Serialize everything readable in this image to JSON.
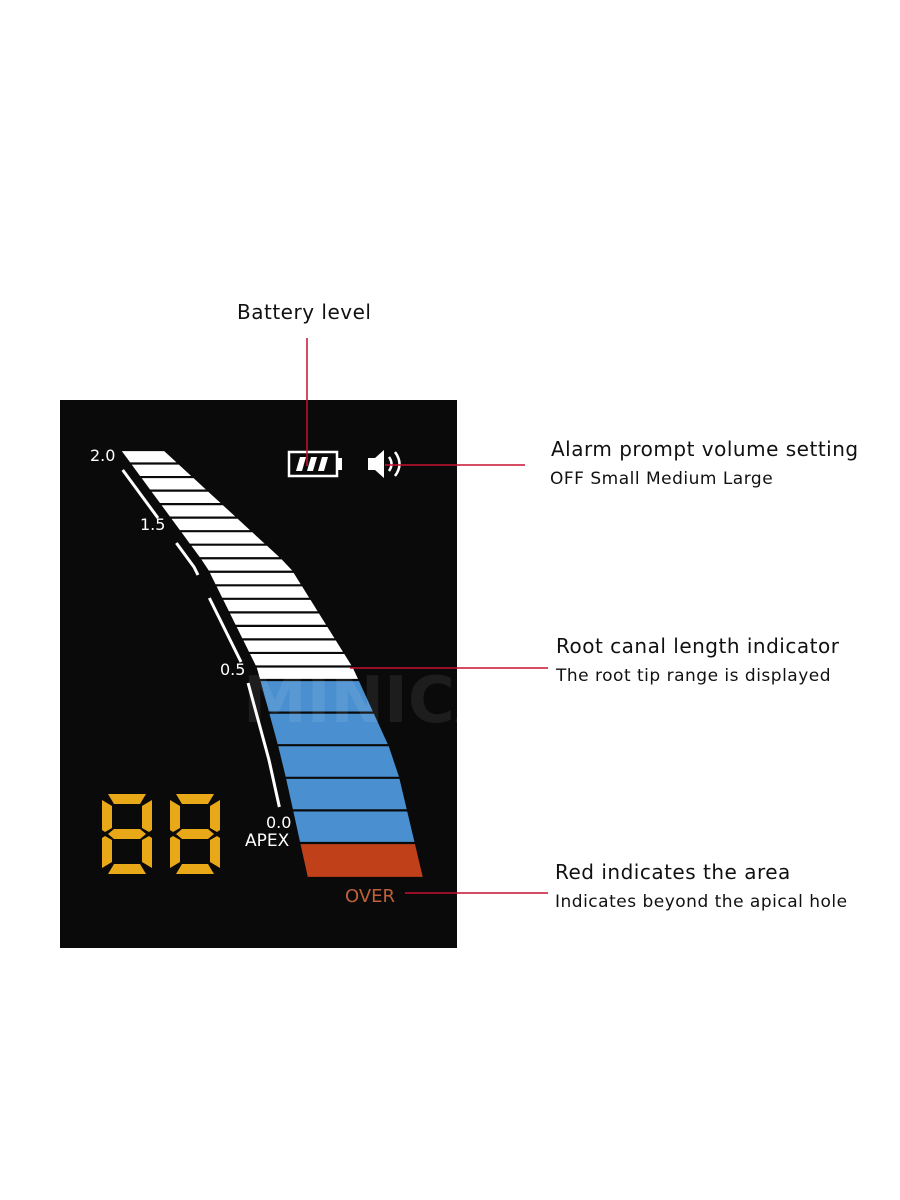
{
  "callouts": {
    "battery": {
      "title": "Battery level"
    },
    "alarm": {
      "title": "Alarm prompt volume setting",
      "subtitle": "OFF Small Medium Large"
    },
    "root": {
      "title": "Root canal length indicator",
      "subtitle": "The root tip range is displayed"
    },
    "red": {
      "title": "Red indicates the area",
      "subtitle": "Indicates beyond the apical hole"
    }
  },
  "display": {
    "scale_labels": [
      "2.0",
      "1.5",
      "0.5",
      "0.0"
    ],
    "apex_label": "APEX",
    "over_label": "OVER",
    "digits": "88",
    "battery_level_bars": 3,
    "icons": [
      "battery-icon",
      "speaker-volume-icon"
    ],
    "bars": {
      "white": 17,
      "blue": 5,
      "red": 1
    },
    "watermark": "MINICAM24"
  },
  "colors": {
    "screen": "#0a0a0a",
    "white_bar": "#ffffff",
    "blue_bar": "#4a90d0",
    "red_bar": "#c0401a",
    "digits": "#e8a818",
    "over_text": "#c0603a",
    "callout_line": "#c8102e"
  }
}
